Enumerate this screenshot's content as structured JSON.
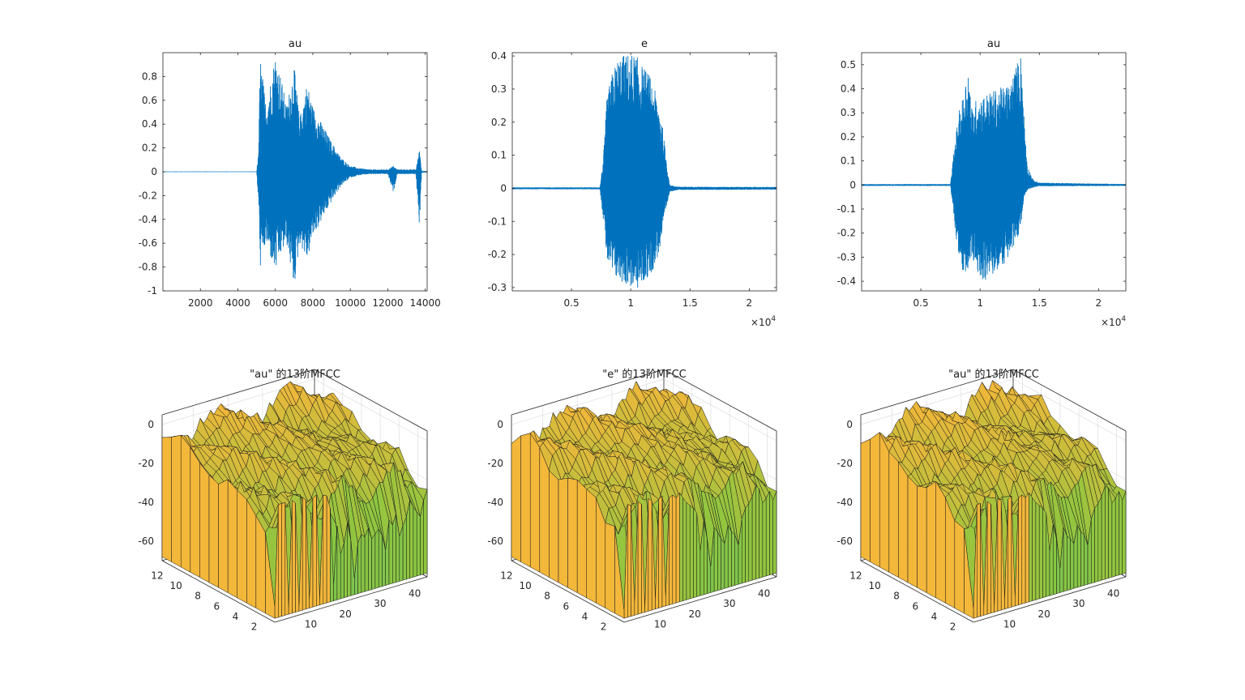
{
  "colors": {
    "signal": "#0072bd",
    "axis": "#262626",
    "grid": "#dcdcdc",
    "surface_high": "#f3b73a",
    "surface_mid": "#8dc63f",
    "surface_low": "#20b7b0",
    "edge": "#1a1a1a"
  },
  "chart_data": [
    {
      "type": "line",
      "title": "au",
      "xlim": [
        1,
        14100
      ],
      "ylim": [
        -1,
        1
      ],
      "xticks": [
        2000,
        4000,
        6000,
        8000,
        10000,
        12000,
        14000
      ],
      "xtick_labels": [
        "2000",
        "4000",
        "6000",
        "8000",
        "10000",
        "12000",
        "14000"
      ],
      "yticks": [
        -1,
        -0.8,
        -0.6,
        -0.4,
        -0.2,
        0,
        0.2,
        0.4,
        0.6,
        0.8
      ],
      "ytick_labels": [
        "-1",
        "-0.8",
        "-0.6",
        "-0.4",
        "-0.2",
        "0",
        "0.2",
        "0.4",
        "0.6",
        "0.8"
      ],
      "envelope": {
        "x": [
          0,
          5000,
          5100,
          5200,
          5500,
          6000,
          6300,
          6600,
          7000,
          7300,
          7700,
          8000,
          8500,
          9000,
          9500,
          10000,
          10500,
          11000,
          12000,
          12300,
          12500,
          13500,
          13700,
          13800,
          14100
        ],
        "upper": [
          0.003,
          0.003,
          0.15,
          0.98,
          0.55,
          0.99,
          0.8,
          0.55,
          0.9,
          0.45,
          0.75,
          0.55,
          0.4,
          0.25,
          0.12,
          0.05,
          0.03,
          0.02,
          0.02,
          0.05,
          0.02,
          0.02,
          0.2,
          0.01,
          0.005
        ],
        "lower": [
          -0.003,
          -0.003,
          -0.25,
          -0.8,
          -0.6,
          -0.85,
          -0.7,
          -0.6,
          -0.98,
          -0.6,
          -0.75,
          -0.55,
          -0.4,
          -0.25,
          -0.12,
          -0.05,
          -0.03,
          -0.02,
          -0.02,
          -0.18,
          -0.02,
          -0.02,
          -0.48,
          -0.01,
          -0.005
        ]
      }
    },
    {
      "type": "line",
      "title": "e",
      "xlim": [
        1,
        22300
      ],
      "ylim": [
        -0.31,
        0.41
      ],
      "xticks": [
        5000,
        10000,
        15000,
        20000
      ],
      "xtick_labels": [
        "0.5",
        "1",
        "1.5",
        "2"
      ],
      "exponent_label": "×10",
      "exponent_power": "4",
      "yticks": [
        -0.3,
        -0.2,
        -0.1,
        0,
        0.1,
        0.2,
        0.3,
        0.4
      ],
      "ytick_labels": [
        "-0.3",
        "-0.2",
        "-0.1",
        "0",
        "0.1",
        "0.2",
        "0.3",
        "0.4"
      ],
      "envelope": {
        "x": [
          0,
          7400,
          7700,
          8000,
          8500,
          9000,
          10000,
          10500,
          11000,
          11500,
          12000,
          12500,
          12900,
          13300,
          14000,
          22300
        ],
        "upper": [
          0.003,
          0.003,
          0.1,
          0.28,
          0.36,
          0.4,
          0.41,
          0.4,
          0.37,
          0.35,
          0.3,
          0.24,
          0.12,
          0.01,
          0.005,
          0.004
        ],
        "lower": [
          -0.003,
          -0.003,
          -0.1,
          -0.22,
          -0.27,
          -0.28,
          -0.3,
          -0.31,
          -0.29,
          -0.27,
          -0.24,
          -0.18,
          -0.08,
          -0.01,
          -0.005,
          -0.004
        ]
      }
    },
    {
      "type": "line",
      "title": "au",
      "xlim": [
        1,
        22300
      ],
      "ylim": [
        -0.44,
        0.55
      ],
      "xticks": [
        5000,
        10000,
        15000,
        20000
      ],
      "xtick_labels": [
        "0.5",
        "1",
        "1.5",
        "2"
      ],
      "exponent_label": "×10",
      "exponent_power": "4",
      "yticks": [
        -0.4,
        -0.3,
        -0.2,
        -0.1,
        0,
        0.1,
        0.2,
        0.3,
        0.4,
        0.5
      ],
      "ytick_labels": [
        "-0.4",
        "-0.3",
        "-0.2",
        "-0.1",
        "0",
        "0.1",
        "0.2",
        "0.3",
        "0.4",
        "0.5"
      ],
      "envelope": {
        "x": [
          0,
          7500,
          7800,
          8200,
          8600,
          9000,
          9300,
          9700,
          10500,
          11500,
          12500,
          13200,
          13500,
          13700,
          14000,
          14500,
          15000,
          22300
        ],
        "upper": [
          0.004,
          0.004,
          0.15,
          0.3,
          0.38,
          0.5,
          0.32,
          0.36,
          0.38,
          0.4,
          0.42,
          0.52,
          0.55,
          0.3,
          0.08,
          0.02,
          0.01,
          0.004
        ],
        "lower": [
          -0.004,
          -0.004,
          -0.15,
          -0.3,
          -0.43,
          -0.35,
          -0.3,
          -0.38,
          -0.4,
          -0.36,
          -0.3,
          -0.22,
          -0.15,
          -0.05,
          -0.02,
          -0.01,
          -0.005,
          -0.004
        ]
      }
    },
    {
      "type": "surface",
      "title": "\"au\" 的13阶MFCC",
      "x_range": [
        1,
        45
      ],
      "y_range": [
        1,
        13
      ],
      "z_range": [
        -70,
        5
      ],
      "xticks": [
        10,
        20,
        30,
        40
      ],
      "xtick_labels": [
        "10",
        "20",
        "30",
        "40"
      ],
      "yticks": [
        2,
        4,
        6,
        8,
        10,
        12
      ],
      "ytick_labels": [
        "2",
        "4",
        "6",
        "8",
        "10",
        "12"
      ],
      "zticks": [
        -60,
        -40,
        -20,
        0
      ],
      "ztick_labels": [
        "-60",
        "-40",
        "-20",
        "0"
      ],
      "front_edge_z": [
        -62,
        -10,
        -10,
        -10,
        -65,
        -10,
        -12,
        -66,
        -10,
        -12,
        -64,
        -12,
        -11,
        -65,
        -12,
        -13,
        -20,
        -60,
        -30,
        -45,
        -40,
        -30,
        -40,
        -60,
        -42,
        -38,
        -40,
        -36,
        -42,
        -40,
        -38,
        -42,
        -50,
        -35,
        -38,
        -33,
        -45,
        -40,
        -36,
        -28,
        -32,
        -35,
        -38,
        -30,
        -25
      ],
      "back_z_level": -5
    },
    {
      "type": "surface",
      "title": "\"e\" 的13阶MFCC",
      "x_range": [
        1,
        45
      ],
      "y_range": [
        1,
        13
      ],
      "z_range": [
        -70,
        5
      ],
      "xticks": [
        10,
        20,
        30,
        40
      ],
      "xtick_labels": [
        "10",
        "20",
        "30",
        "40"
      ],
      "yticks": [
        2,
        4,
        6,
        8,
        10,
        12
      ],
      "ytick_labels": [
        "2",
        "4",
        "6",
        "8",
        "10",
        "12"
      ],
      "zticks": [
        -60,
        -40,
        -20,
        0
      ],
      "ztick_labels": [
        "-60",
        "-40",
        "-20",
        "0"
      ],
      "front_edge_z": [
        -64,
        -10,
        -11,
        -62,
        -10,
        -12,
        -66,
        -10,
        -12,
        -63,
        -12,
        -11,
        -64,
        -13,
        -12,
        -14,
        -12,
        -15,
        -18,
        -20,
        -22,
        -25,
        -45,
        -30,
        -40,
        -55,
        -35,
        -38,
        -42,
        -45,
        -36,
        -40,
        -42,
        -48,
        -35,
        -30,
        -28,
        -25,
        -20,
        -22,
        -30,
        -28,
        -25,
        -30,
        -26
      ],
      "back_z_level": -4
    },
    {
      "type": "surface",
      "title": "\"au\" 的13阶MFCC",
      "x_range": [
        1,
        45
      ],
      "y_range": [
        1,
        13
      ],
      "z_range": [
        -70,
        5
      ],
      "xticks": [
        10,
        20,
        30,
        40
      ],
      "xtick_labels": [
        "10",
        "20",
        "30",
        "40"
      ],
      "yticks": [
        2,
        4,
        6,
        8,
        10,
        12
      ],
      "ytick_labels": [
        "2",
        "4",
        "6",
        "8",
        "10",
        "12"
      ],
      "zticks": [
        -60,
        -40,
        -20,
        0
      ],
      "ztick_labels": [
        "-60",
        "-40",
        "-20",
        "0"
      ],
      "front_edge_z": [
        -63,
        -10,
        -10,
        -64,
        -10,
        -12,
        -65,
        -10,
        -12,
        -63,
        -12,
        -11,
        -64,
        -13,
        -12,
        -14,
        -12,
        -15,
        -18,
        -20,
        -22,
        -25,
        -45,
        -32,
        -40,
        -56,
        -35,
        -40,
        -42,
        -45,
        -36,
        -40,
        -42,
        -48,
        -35,
        -30,
        -28,
        -25,
        -20,
        -22,
        -30,
        -28,
        -25,
        -30,
        -26
      ],
      "back_z_level": -4
    }
  ]
}
